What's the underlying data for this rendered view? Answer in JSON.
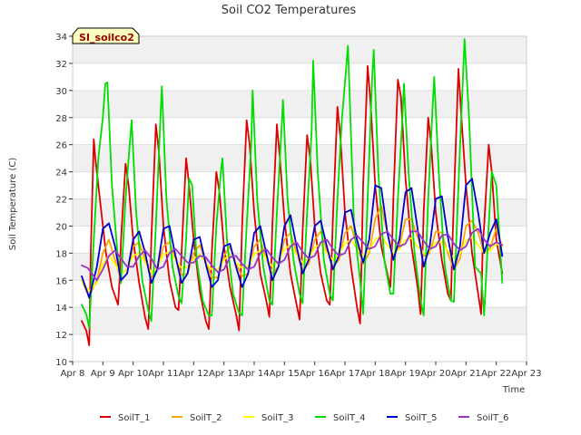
{
  "chart_data": {
    "type": "line",
    "title": "Soil CO2 Temperatures",
    "badge": "SI_soilco2",
    "xlabel": "Time",
    "ylabel": "Soil Temperature (C)",
    "xlim": [
      8,
      23
    ],
    "ylim": [
      10,
      34
    ],
    "x_ticks": [
      {
        "v": 8,
        "label": "Apr 8"
      },
      {
        "v": 9,
        "label": "Apr 9"
      },
      {
        "v": 10,
        "label": "Apr 10"
      },
      {
        "v": 11,
        "label": "Apr 11"
      },
      {
        "v": 12,
        "label": "Apr 12"
      },
      {
        "v": 13,
        "label": "Apr 13"
      },
      {
        "v": 14,
        "label": "Apr 14"
      },
      {
        "v": 15,
        "label": "Apr 15"
      },
      {
        "v": 16,
        "label": "Apr 16"
      },
      {
        "v": 17,
        "label": "Apr 17"
      },
      {
        "v": 18,
        "label": "Apr 18"
      },
      {
        "v": 19,
        "label": "Apr 19"
      },
      {
        "v": 20,
        "label": "Apr 20"
      },
      {
        "v": 21,
        "label": "Apr 21"
      },
      {
        "v": 22,
        "label": "Apr 22"
      },
      {
        "v": 23,
        "label": "Apr 23"
      }
    ],
    "y_ticks": [
      10,
      12,
      14,
      16,
      18,
      20,
      22,
      24,
      26,
      28,
      30,
      32,
      34
    ],
    "grid": true,
    "legend_position": "bottom",
    "series": [
      {
        "name": "SoilT_1",
        "color": "#dd0000",
        "x": [
          8.3,
          8.45,
          8.55,
          8.6,
          8.7,
          8.75,
          8.9,
          9.1,
          9.3,
          9.5,
          9.55,
          9.6,
          9.75,
          9.85,
          10.0,
          10.2,
          10.4,
          10.5,
          10.55,
          10.6,
          10.75,
          10.85,
          11.0,
          11.2,
          11.4,
          11.5,
          11.55,
          11.6,
          11.75,
          11.85,
          12.0,
          12.2,
          12.4,
          12.5,
          12.55,
          12.6,
          12.75,
          12.85,
          13.0,
          13.2,
          13.4,
          13.5,
          13.55,
          13.6,
          13.75,
          13.85,
          14.0,
          14.2,
          14.4,
          14.5,
          14.55,
          14.6,
          14.75,
          14.85,
          15.0,
          15.2,
          15.4,
          15.5,
          15.55,
          15.6,
          15.75,
          15.85,
          16.0,
          16.2,
          16.4,
          16.5,
          16.55,
          16.6,
          16.75,
          16.85,
          17.0,
          17.2,
          17.4,
          17.5,
          17.55,
          17.6,
          17.75,
          17.85,
          18.0,
          18.2,
          18.4,
          18.5,
          18.55,
          18.6,
          18.75,
          18.85,
          19.0,
          19.2,
          19.4,
          19.5,
          19.55,
          19.6,
          19.75,
          19.85,
          20.0,
          20.2,
          20.4,
          20.5,
          20.55,
          20.6,
          20.75,
          20.85,
          21.0,
          21.2,
          21.4,
          21.5,
          21.55,
          21.6,
          21.75,
          21.85,
          22.0,
          22.2
        ],
        "values": [
          13.0,
          12.3,
          11.2,
          18.0,
          26.4,
          25.0,
          22.0,
          18.0,
          15.5,
          14.2,
          16.0,
          19.0,
          24.6,
          23.0,
          19.0,
          15.8,
          13.2,
          12.4,
          15.0,
          19.0,
          27.5,
          25.5,
          20.0,
          16.0,
          14.0,
          13.8,
          16.0,
          18.0,
          25.0,
          23.0,
          19.0,
          15.2,
          13.0,
          12.4,
          15.0,
          18.0,
          24.0,
          22.5,
          18.5,
          15.5,
          13.5,
          12.3,
          16.0,
          20.0,
          27.8,
          26.0,
          21.0,
          16.5,
          14.5,
          13.3,
          16.0,
          20.0,
          27.5,
          25.0,
          20.5,
          16.5,
          14.2,
          13.1,
          16.0,
          19.5,
          26.7,
          25.0,
          20.0,
          16.5,
          14.5,
          14.2,
          17.0,
          20.5,
          28.8,
          26.5,
          21.0,
          17.0,
          14.0,
          12.8,
          17.5,
          23.0,
          31.8,
          29.0,
          23.0,
          18.5,
          16.5,
          15.5,
          18.0,
          22.0,
          30.8,
          29.5,
          23.5,
          18.5,
          15.5,
          13.5,
          17.0,
          21.0,
          28.0,
          26.0,
          21.0,
          17.5,
          15.0,
          14.5,
          18.5,
          22.0,
          31.6,
          28.0,
          23.0,
          18.0,
          15.0,
          13.5,
          18.5,
          20.0,
          26.0,
          24.0,
          19.0,
          16.5
        ]
      },
      {
        "name": "SoilT_2",
        "color": "#ffa500",
        "x": [
          8.3,
          8.55,
          8.8,
          9.0,
          9.2,
          9.4,
          9.6,
          9.8,
          10.0,
          10.2,
          10.4,
          10.6,
          10.8,
          11.0,
          11.2,
          11.4,
          11.6,
          11.8,
          12.0,
          12.2,
          12.4,
          12.6,
          12.8,
          13.0,
          13.2,
          13.4,
          13.6,
          13.8,
          14.0,
          14.2,
          14.4,
          14.6,
          14.8,
          15.0,
          15.2,
          15.4,
          15.6,
          15.8,
          16.0,
          16.2,
          16.4,
          16.6,
          16.8,
          17.0,
          17.2,
          17.4,
          17.6,
          17.8,
          18.0,
          18.2,
          18.4,
          18.6,
          18.8,
          19.0,
          19.2,
          19.4,
          19.6,
          19.8,
          20.0,
          20.2,
          20.4,
          20.6,
          20.8,
          21.0,
          21.2,
          21.4,
          21.6,
          21.8,
          22.0,
          22.2
        ],
        "values": [
          16.0,
          14.8,
          16.0,
          18.0,
          19.0,
          17.5,
          16.0,
          16.5,
          18.5,
          18.8,
          17.5,
          16.2,
          16.8,
          18.5,
          18.8,
          17.6,
          16.4,
          16.5,
          18.0,
          18.6,
          17.4,
          16.2,
          16.2,
          17.8,
          18.5,
          17.2,
          16.3,
          16.5,
          18.5,
          19.0,
          17.6,
          16.5,
          17.0,
          19.0,
          19.5,
          18.0,
          16.8,
          17.2,
          19.0,
          19.6,
          18.2,
          17.0,
          17.5,
          19.5,
          20.0,
          18.5,
          17.2,
          18.0,
          20.5,
          21.5,
          19.5,
          17.8,
          18.5,
          20.5,
          20.5,
          19.2,
          17.8,
          18.0,
          19.6,
          19.5,
          18.0,
          16.8,
          17.6,
          20.0,
          20.4,
          19.5,
          18.0,
          18.4,
          19.8,
          18.5
        ]
      },
      {
        "name": "SoilT_3",
        "color": "#ffff00",
        "x": [
          8.3,
          8.55,
          8.8,
          9.0,
          9.2,
          9.4,
          9.6,
          9.8,
          10.0,
          10.2,
          10.4,
          10.6,
          10.8,
          11.0,
          11.2,
          11.4,
          11.6,
          11.8,
          12.0,
          12.2,
          12.4,
          12.6,
          12.8,
          13.0,
          13.2,
          13.4,
          13.6,
          13.8,
          14.0,
          14.2,
          14.4,
          14.6,
          14.8,
          15.0,
          15.2,
          15.4,
          15.6,
          15.8,
          16.0,
          16.2,
          16.4,
          16.6,
          16.8,
          17.0,
          17.2,
          17.4,
          17.6,
          17.8,
          18.0,
          18.2,
          18.4,
          18.6,
          18.8,
          19.0,
          19.2,
          19.4,
          19.6,
          19.8,
          20.0,
          20.2,
          20.4,
          20.6,
          20.8,
          21.0,
          21.2,
          21.4,
          21.6,
          21.8,
          22.0,
          22.2
        ],
        "values": [
          16.0,
          15.2,
          15.8,
          17.2,
          17.8,
          17.2,
          16.5,
          16.8,
          17.8,
          18.0,
          17.3,
          16.6,
          17.0,
          17.9,
          18.1,
          17.5,
          16.9,
          17.0,
          17.6,
          17.9,
          17.3,
          16.8,
          16.8,
          17.5,
          17.9,
          17.3,
          16.9,
          17.0,
          17.9,
          18.2,
          17.6,
          17.0,
          17.4,
          18.3,
          18.6,
          17.9,
          17.3,
          17.6,
          18.4,
          18.7,
          18.0,
          17.5,
          17.9,
          18.7,
          19.0,
          18.3,
          17.8,
          18.2,
          19.0,
          19.3,
          18.6,
          18.0,
          18.3,
          19.0,
          19.1,
          18.5,
          18.0,
          18.1,
          18.8,
          18.8,
          18.2,
          17.6,
          18.0,
          18.9,
          19.2,
          18.6,
          18.0,
          18.2,
          18.7,
          18.5
        ]
      },
      {
        "name": "SoilT_4",
        "color": "#00dd00",
        "x": [
          8.3,
          8.45,
          8.55,
          8.7,
          8.85,
          9.0,
          9.08,
          9.15,
          9.3,
          9.5,
          9.6,
          9.75,
          9.85,
          9.95,
          10.1,
          10.3,
          10.5,
          10.6,
          10.75,
          10.9,
          10.95,
          11.1,
          11.3,
          11.5,
          11.6,
          11.75,
          11.85,
          11.95,
          12.1,
          12.3,
          12.5,
          12.6,
          12.75,
          12.9,
          12.95,
          13.1,
          13.3,
          13.5,
          13.6,
          13.75,
          13.9,
          13.95,
          14.1,
          14.3,
          14.5,
          14.6,
          14.75,
          14.9,
          14.95,
          15.1,
          15.3,
          15.5,
          15.6,
          15.75,
          15.9,
          15.95,
          16.1,
          16.3,
          16.5,
          16.6,
          16.75,
          16.9,
          16.95,
          17.1,
          17.3,
          17.5,
          17.6,
          17.75,
          17.9,
          17.95,
          18.1,
          18.3,
          18.5,
          18.6,
          18.75,
          18.9,
          18.95,
          19.1,
          19.3,
          19.5,
          19.6,
          19.75,
          19.9,
          19.95,
          20.1,
          20.3,
          20.5,
          20.6,
          20.75,
          20.9,
          20.95,
          21.1,
          21.3,
          21.5,
          21.6,
          21.75,
          21.85,
          22.0,
          22.2
        ],
        "values": [
          14.2,
          13.5,
          12.5,
          19.0,
          25.0,
          28.0,
          30.5,
          30.6,
          23.0,
          17.5,
          15.8,
          22.0,
          25.0,
          27.8,
          21.0,
          16.0,
          13.8,
          13.0,
          20.0,
          28.0,
          30.3,
          22.0,
          17.0,
          14.8,
          14.3,
          19.0,
          23.5,
          23.0,
          17.5,
          14.5,
          13.4,
          13.4,
          20.0,
          24.0,
          25.0,
          19.0,
          15.0,
          13.6,
          13.4,
          20.0,
          26.0,
          30.0,
          22.0,
          17.0,
          14.5,
          14.2,
          21.0,
          27.0,
          29.3,
          22.0,
          17.5,
          15.0,
          14.3,
          21.0,
          27.0,
          32.2,
          24.0,
          17.5,
          15.0,
          14.5,
          22.0,
          28.0,
          29.2,
          33.3,
          20.0,
          16.0,
          13.5,
          22.0,
          31.0,
          33.0,
          24.0,
          17.5,
          15.0,
          15.0,
          22.0,
          28.0,
          30.5,
          24.0,
          18.0,
          14.5,
          13.4,
          22.0,
          29.0,
          31.0,
          24.0,
          17.0,
          14.5,
          14.4,
          23.0,
          31.0,
          33.8,
          28.0,
          17.0,
          16.5,
          13.4,
          20.0,
          24.0,
          23.0,
          15.8
        ]
      },
      {
        "name": "SoilT_5",
        "color": "#0000cc",
        "x": [
          8.3,
          8.55,
          8.8,
          9.0,
          9.2,
          9.4,
          9.6,
          9.8,
          10.0,
          10.2,
          10.4,
          10.6,
          10.8,
          11.0,
          11.2,
          11.4,
          11.6,
          11.8,
          12.0,
          12.2,
          12.4,
          12.6,
          12.8,
          13.0,
          13.2,
          13.4,
          13.6,
          13.8,
          14.0,
          14.2,
          14.4,
          14.6,
          14.8,
          15.0,
          15.2,
          15.4,
          15.6,
          15.8,
          16.0,
          16.2,
          16.4,
          16.6,
          16.8,
          17.0,
          17.2,
          17.4,
          17.6,
          17.8,
          18.0,
          18.2,
          18.4,
          18.6,
          18.8,
          19.0,
          19.2,
          19.4,
          19.6,
          19.8,
          20.0,
          20.2,
          20.4,
          20.6,
          20.8,
          21.0,
          21.2,
          21.4,
          21.6,
          21.8,
          22.0,
          22.2
        ],
        "values": [
          16.3,
          14.7,
          17.0,
          19.8,
          20.2,
          18.5,
          16.0,
          16.5,
          19.0,
          19.6,
          18.0,
          15.8,
          16.8,
          19.8,
          20.0,
          17.8,
          15.8,
          16.5,
          19.0,
          19.2,
          17.2,
          15.5,
          16.0,
          18.5,
          18.7,
          17.0,
          15.5,
          16.5,
          19.5,
          20.0,
          18.0,
          16.0,
          17.0,
          20.0,
          20.8,
          18.5,
          16.5,
          17.5,
          20.0,
          20.4,
          18.5,
          16.8,
          17.8,
          21.0,
          21.2,
          19.0,
          17.3,
          19.0,
          23.0,
          22.8,
          19.5,
          17.5,
          19.0,
          22.5,
          22.8,
          19.8,
          17.0,
          18.5,
          22.0,
          22.2,
          19.2,
          16.8,
          18.5,
          23.0,
          23.5,
          21.0,
          18.0,
          19.5,
          20.5,
          17.8
        ]
      },
      {
        "name": "SoilT_6",
        "color": "#9933cc",
        "x": [
          8.3,
          8.5,
          8.8,
          9.0,
          9.2,
          9.4,
          9.6,
          9.8,
          10.0,
          10.2,
          10.4,
          10.6,
          10.8,
          11.0,
          11.2,
          11.4,
          11.6,
          11.8,
          12.0,
          12.2,
          12.4,
          12.6,
          12.8,
          13.0,
          13.2,
          13.4,
          13.6,
          13.8,
          14.0,
          14.2,
          14.4,
          14.6,
          14.8,
          15.0,
          15.2,
          15.4,
          15.6,
          15.8,
          16.0,
          16.2,
          16.4,
          16.6,
          16.8,
          17.0,
          17.2,
          17.4,
          17.6,
          17.8,
          18.0,
          18.2,
          18.4,
          18.6,
          18.8,
          19.0,
          19.2,
          19.4,
          19.6,
          19.8,
          20.0,
          20.2,
          20.4,
          20.6,
          20.8,
          21.0,
          21.2,
          21.4,
          21.6,
          21.8,
          22.0,
          22.2
        ],
        "values": [
          17.1,
          16.9,
          16.0,
          16.8,
          17.8,
          18.2,
          17.6,
          17.0,
          17.0,
          17.8,
          18.2,
          17.6,
          16.8,
          17.0,
          18.0,
          18.3,
          17.8,
          17.3,
          17.3,
          17.8,
          17.7,
          17.1,
          16.6,
          16.8,
          17.7,
          17.8,
          17.2,
          16.8,
          17.0,
          18.0,
          18.3,
          17.7,
          17.2,
          17.5,
          18.5,
          18.8,
          18.1,
          17.6,
          17.8,
          18.8,
          19.0,
          18.3,
          17.8,
          18.0,
          19.0,
          19.3,
          18.8,
          18.3,
          18.5,
          19.4,
          19.6,
          19.0,
          18.5,
          18.7,
          19.6,
          19.6,
          18.9,
          18.3,
          18.5,
          19.3,
          19.4,
          18.7,
          18.2,
          18.5,
          19.5,
          19.8,
          19.0,
          18.5,
          18.8,
          18.6
        ]
      }
    ]
  }
}
